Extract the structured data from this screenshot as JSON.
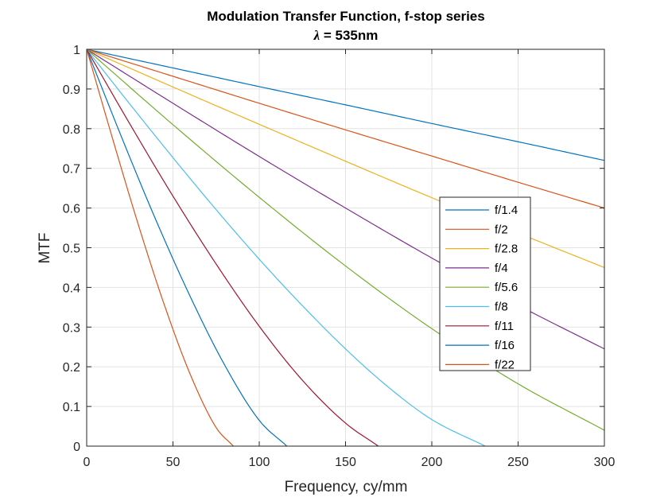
{
  "chart_data": {
    "type": "line",
    "title": "Modulation Transfer Function, f-stop series",
    "subtitle_lambda": "λ",
    "subtitle_rest": " = 535nm",
    "xlabel": "Frequency, cy/mm",
    "ylabel": "MTF",
    "xlim": [
      0,
      300
    ],
    "ylim": [
      0,
      1
    ],
    "xticks": [
      0,
      50,
      100,
      150,
      200,
      250,
      300
    ],
    "yticks": [
      0,
      0.1,
      0.2,
      0.3,
      0.4,
      0.5,
      0.6,
      0.7,
      0.8,
      0.9,
      1
    ],
    "grid": true,
    "legend_position": "right",
    "wavelength_nm": 535,
    "series": [
      {
        "name": "f/1.4",
        "color": "#0072BD",
        "x": [
          0,
          50,
          100,
          150,
          200,
          250,
          300
        ],
        "values": [
          1,
          0.953,
          0.906,
          0.86,
          0.813,
          0.767,
          0.72
        ]
      },
      {
        "name": "f/2",
        "color": "#D95319",
        "x": [
          0,
          50,
          100,
          150,
          200,
          250,
          300
        ],
        "values": [
          1,
          0.932,
          0.864,
          0.797,
          0.731,
          0.665,
          0.6
        ]
      },
      {
        "name": "f/2.8",
        "color": "#EDB120",
        "x": [
          0,
          50,
          100,
          150,
          200,
          250,
          300
        ],
        "values": [
          1,
          0.905,
          0.811,
          0.718,
          0.626,
          0.537,
          0.45
        ]
      },
      {
        "name": "f/4",
        "color": "#7E2F8E",
        "x": [
          0,
          50,
          100,
          150,
          200,
          250,
          300
        ],
        "values": [
          1,
          0.864,
          0.73,
          0.6,
          0.474,
          0.355,
          0.245
        ]
      },
      {
        "name": "f/5.6",
        "color": "#77AC30",
        "x": [
          0,
          50,
          100,
          150,
          200,
          250,
          300
        ],
        "values": [
          1,
          0.81,
          0.627,
          0.454,
          0.296,
          0.157,
          0.04
        ]
      },
      {
        "name": "f/8",
        "color": "#4DBEEE",
        "x": [
          0,
          25,
          50,
          75,
          100,
          125,
          150,
          175,
          200,
          231
        ],
        "values": [
          1,
          0.862,
          0.727,
          0.596,
          0.471,
          0.354,
          0.245,
          0.148,
          0.067,
          0
        ]
      },
      {
        "name": "f/11",
        "color": "#A2142F",
        "x": [
          0,
          25,
          50,
          75,
          100,
          125,
          150,
          169
        ],
        "values": [
          1,
          0.812,
          0.63,
          0.459,
          0.302,
          0.166,
          0.058,
          0
        ]
      },
      {
        "name": "f/16",
        "color": "#0072BD",
        "x": [
          0,
          20,
          40,
          60,
          80,
          100,
          116
        ],
        "values": [
          1,
          0.781,
          0.571,
          0.377,
          0.204,
          0.065,
          0
        ]
      },
      {
        "name": "f/22",
        "color": "#D95319",
        "x": [
          0,
          15,
          30,
          45,
          60,
          75,
          85
        ],
        "values": [
          1,
          0.775,
          0.557,
          0.356,
          0.181,
          0.047,
          0
        ]
      }
    ]
  }
}
